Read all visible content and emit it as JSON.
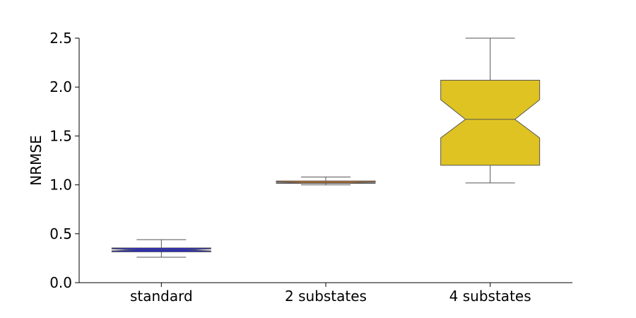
{
  "chart_data": {
    "type": "boxplot",
    "notched": true,
    "title": "",
    "xlabel": "",
    "ylabel": "NRMSE",
    "ylim": [
      0.0,
      2.5
    ],
    "yticks": [
      "0.0",
      "0.5",
      "1.0",
      "1.5",
      "2.0",
      "2.5"
    ],
    "categories": [
      "standard",
      "2 substates",
      "4 substates"
    ],
    "grid": false,
    "series": [
      {
        "category": "standard",
        "color": "#2222cc",
        "whisker_low": 0.26,
        "q1": 0.315,
        "median": 0.335,
        "q3": 0.355,
        "whisker_high": 0.44,
        "notch_low": 0.325,
        "notch_high": 0.345
      },
      {
        "category": "2 substates",
        "color": "#e07a1e",
        "whisker_low": 1.0,
        "q1": 1.015,
        "median": 1.025,
        "q3": 1.04,
        "whisker_high": 1.08,
        "notch_low": 1.02,
        "notch_high": 1.03
      },
      {
        "category": "4 substates",
        "color": "#dfc322",
        "whisker_low": 1.02,
        "q1": 1.2,
        "median": 1.67,
        "q3": 2.07,
        "whisker_high": 2.5,
        "notch_low": 1.48,
        "notch_high": 1.87
      }
    ]
  }
}
